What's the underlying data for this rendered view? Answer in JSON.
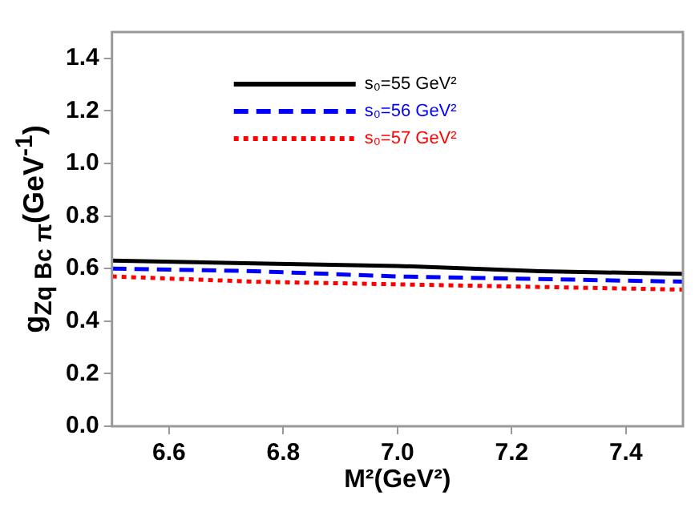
{
  "chart_data": {
    "type": "line",
    "xlabel": "M²(GeV²)",
    "ylabel": "g$_{Zq Bc π}$(GeV$^{-1}$)",
    "x": [
      6.5,
      6.75,
      7.0,
      7.25,
      7.5
    ],
    "series": [
      {
        "name": "s₀=55 GeV²",
        "color": "#000000",
        "line_style": "solid",
        "values": [
          0.63,
          0.62,
          0.61,
          0.59,
          0.58
        ]
      },
      {
        "name": "s₀=56 GeV²",
        "color": "#0000ff",
        "line_style": "dashed",
        "values": [
          0.6,
          0.59,
          0.57,
          0.56,
          0.55
        ]
      },
      {
        "name": "s₀=57 GeV²",
        "color": "#ff0000",
        "line_style": "dotted",
        "values": [
          0.57,
          0.55,
          0.54,
          0.53,
          0.52
        ]
      }
    ],
    "xlim": [
      6.5,
      7.5
    ],
    "xticks": [
      6.6,
      6.8,
      {
        "value": 7.0,
        "label": "7.0"
      },
      7.2,
      7.4
    ],
    "ylim": [
      0,
      1.5
    ],
    "yticks": [
      {
        "value": 0,
        "label": "0.0"
      },
      0.2,
      0.4,
      0.6,
      0.8,
      {
        "value": 1.0,
        "label": "1.0"
      },
      1.2,
      1.4
    ],
    "grid": false,
    "legend": "top",
    "marker": "none"
  }
}
